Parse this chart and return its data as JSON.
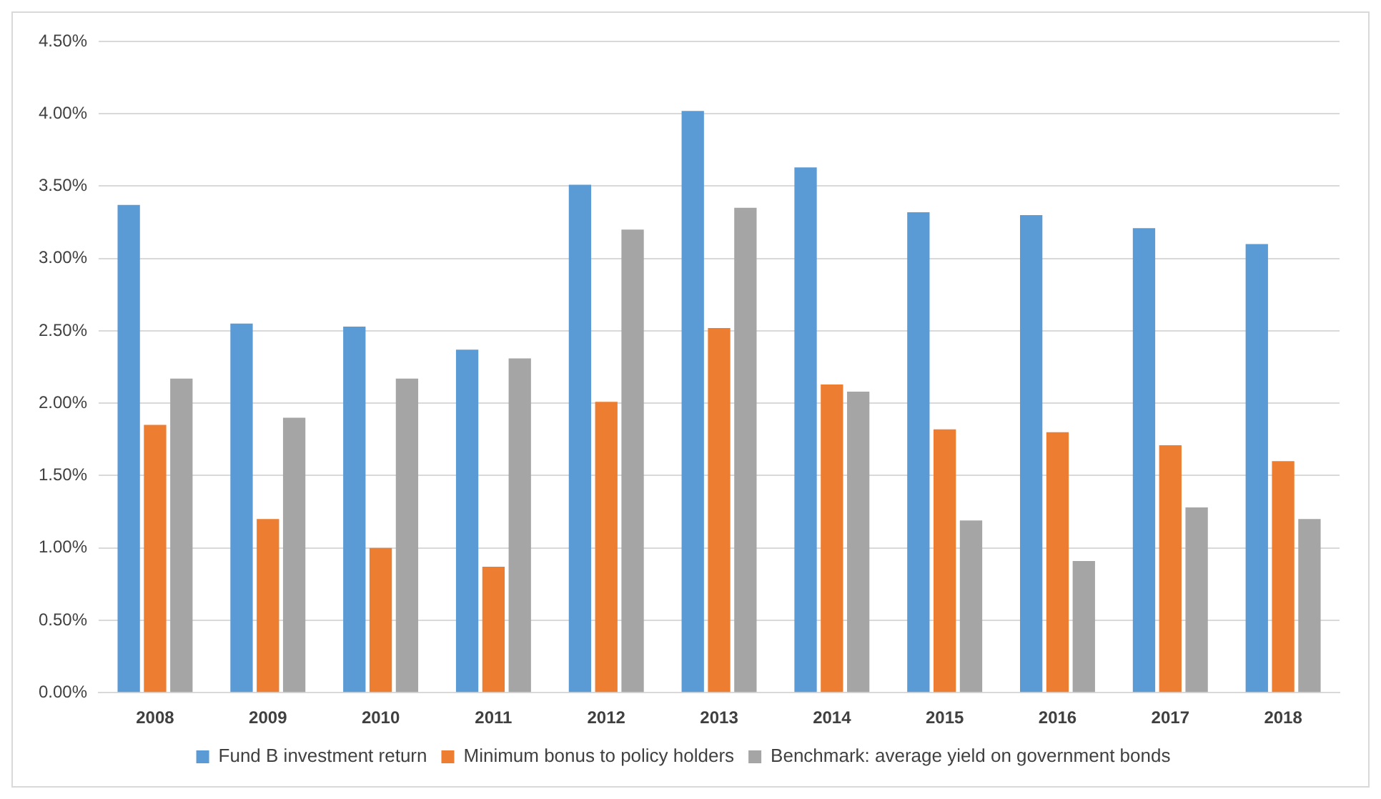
{
  "chart_data": {
    "type": "bar",
    "categories": [
      "2008",
      "2009",
      "2010",
      "2011",
      "2012",
      "2013",
      "2014",
      "2015",
      "2016",
      "2017",
      "2018"
    ],
    "series": [
      {
        "name": "Fund B investment return",
        "color": "#5b9bd5",
        "values": [
          3.37,
          2.55,
          2.53,
          2.37,
          3.51,
          4.02,
          3.63,
          3.32,
          3.3,
          3.21,
          3.1
        ]
      },
      {
        "name": "Minimum bonus to policy holders",
        "color": "#ed7d31",
        "values": [
          1.85,
          1.2,
          1.0,
          0.87,
          2.01,
          2.52,
          2.13,
          1.82,
          1.8,
          1.71,
          1.6
        ]
      },
      {
        "name": "Benchmark: average yield on government bonds",
        "color": "#a5a5a5",
        "values": [
          2.17,
          1.9,
          2.17,
          2.31,
          3.2,
          3.35,
          2.08,
          1.19,
          0.91,
          1.28,
          1.2
        ]
      }
    ],
    "ylim": [
      0,
      4.5
    ],
    "yticks": [
      {
        "value": 0,
        "label": "0.00%"
      },
      {
        "value": 0.5,
        "label": "0.50%"
      },
      {
        "value": 1,
        "label": "1.00%"
      },
      {
        "value": 1.5,
        "label": "1.50%"
      },
      {
        "value": 2,
        "label": "2.00%"
      },
      {
        "value": 2.5,
        "label": "2.50%"
      },
      {
        "value": 3,
        "label": "3.00%"
      },
      {
        "value": 3.5,
        "label": "3.50%"
      },
      {
        "value": 4,
        "label": "4.00%"
      },
      {
        "value": 4.5,
        "label": "4.50%"
      }
    ],
    "grid": "y",
    "legend": "bottom"
  }
}
